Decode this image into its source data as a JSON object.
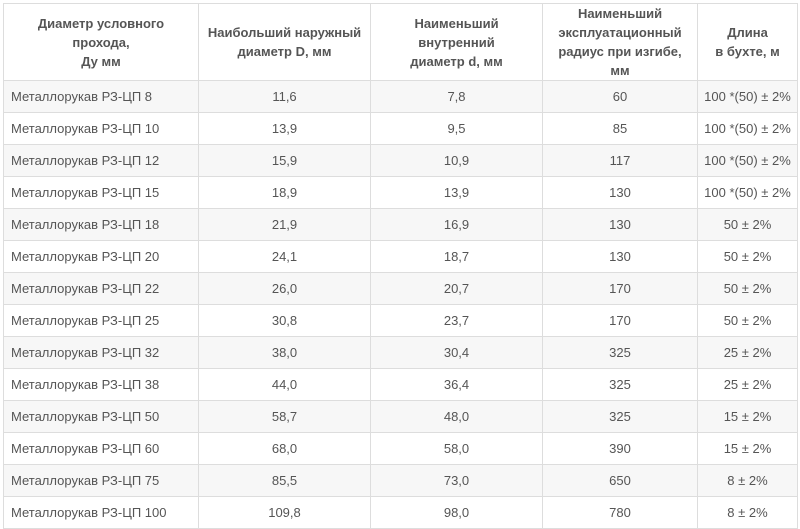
{
  "table": {
    "headers": [
      "Диаметр условного прохода,\nДу мм",
      "Наибольший наружный\nдиаметр D, мм",
      "Наименьший внутренний\nдиаметр d, мм",
      "Наименьший\nэксплуатационный\nрадиус при изгибе, мм",
      "Длина\nв бухте, м"
    ],
    "rows": [
      [
        "Металлорукав РЗ-ЦП 8",
        "11,6",
        "7,8",
        "60",
        "100 *(50) ± 2%"
      ],
      [
        "Металлорукав РЗ-ЦП 10",
        "13,9",
        "9,5",
        "85",
        "100 *(50) ± 2%"
      ],
      [
        "Металлорукав РЗ-ЦП 12",
        "15,9",
        "10,9",
        "117",
        "100 *(50) ± 2%"
      ],
      [
        "Металлорукав РЗ-ЦП 15",
        "18,9",
        "13,9",
        "130",
        "100 *(50) ± 2%"
      ],
      [
        "Металлорукав РЗ-ЦП 18",
        "21,9",
        "16,9",
        "130",
        "50 ± 2%"
      ],
      [
        "Металлорукав РЗ-ЦП 20",
        "24,1",
        "18,7",
        "130",
        "50 ± 2%"
      ],
      [
        "Металлорукав РЗ-ЦП 22",
        "26,0",
        "20,7",
        "170",
        "50 ± 2%"
      ],
      [
        "Металлорукав РЗ-ЦП 25",
        "30,8",
        "23,7",
        "170",
        "50 ± 2%"
      ],
      [
        "Металлорукав РЗ-ЦП 32",
        "38,0",
        "30,4",
        "325",
        "25 ± 2%"
      ],
      [
        "Металлорукав РЗ-ЦП 38",
        "44,0",
        "36,4",
        "325",
        "25 ± 2%"
      ],
      [
        "Металлорукав РЗ-ЦП 50",
        "58,7",
        "48,0",
        "325",
        "15 ± 2%"
      ],
      [
        "Металлорукав РЗ-ЦП 60",
        "68,0",
        "58,0",
        "390",
        "15 ± 2%"
      ],
      [
        "Металлорукав РЗ-ЦП 75",
        "85,5",
        "73,0",
        "650",
        "8 ± 2%"
      ],
      [
        "Металлорукав РЗ-ЦП 100",
        "109,8",
        "98,0",
        "780",
        "8 ± 2%"
      ]
    ]
  }
}
